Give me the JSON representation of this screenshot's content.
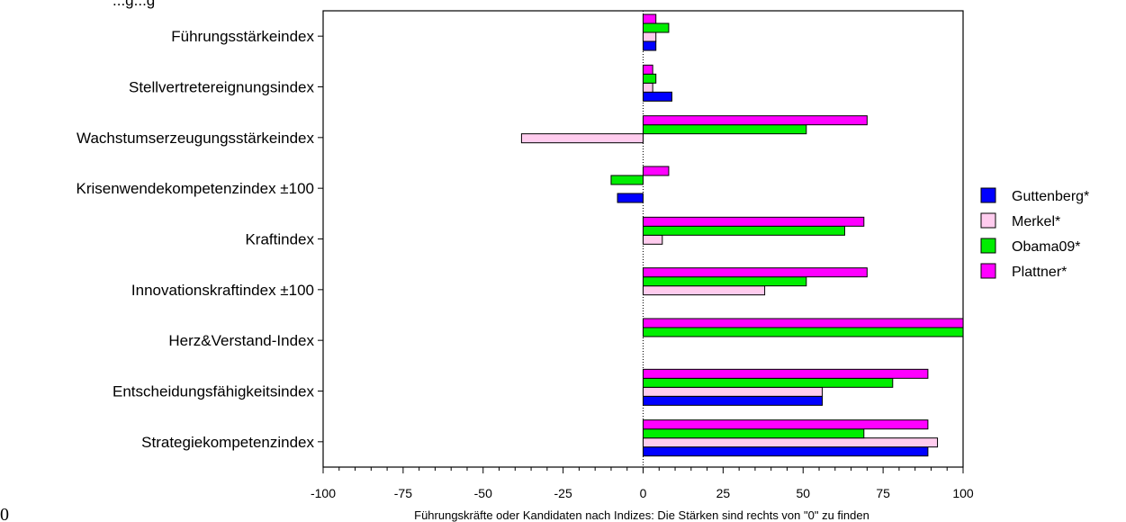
{
  "chart_data": {
    "type": "bar",
    "orientation": "horizontal",
    "title": "...g...g",
    "xlabel": "Führungskräfte oder Kandidaten nach Indizes: Die Stärken sind rechts von \"0\" zu finden",
    "ylabel": "",
    "xlim": [
      -100,
      100
    ],
    "xticks": [
      "-100",
      "-75",
      "-50",
      "-25",
      "0",
      "25",
      "50",
      "75",
      "100"
    ],
    "categories": [
      "Führungsstärkeindex",
      "Stellvertretereignungsindex",
      "Wachstumserzeugungsstärkeindex",
      "Krisenwendekompetenzindex ±100",
      "Kraftindex",
      "Innovationskraftindex ±100",
      "Herz&Verstand-Index",
      "Entscheidungsfähigkeitsindex",
      "Strategiekompetenzindex"
    ],
    "series": [
      {
        "name": "Guttenberg*",
        "color": "#0000ff",
        "values": [
          4,
          9,
          0,
          -8,
          0,
          0,
          0,
          56,
          89
        ]
      },
      {
        "name": "Merkel*",
        "color": "#ffccee",
        "values": [
          4,
          3,
          -38,
          0,
          6,
          38,
          0,
          56,
          92
        ]
      },
      {
        "name": "Obama09*",
        "color": "#00ee00",
        "values": [
          8,
          4,
          51,
          -10,
          63,
          51,
          100,
          78,
          69
        ]
      },
      {
        "name": "Plattner*",
        "color": "#ff00ff",
        "values": [
          4,
          3,
          70,
          8,
          69,
          70,
          100,
          89,
          89
        ]
      }
    ],
    "legend_position": "right",
    "grid": false
  },
  "corner_text": "0"
}
